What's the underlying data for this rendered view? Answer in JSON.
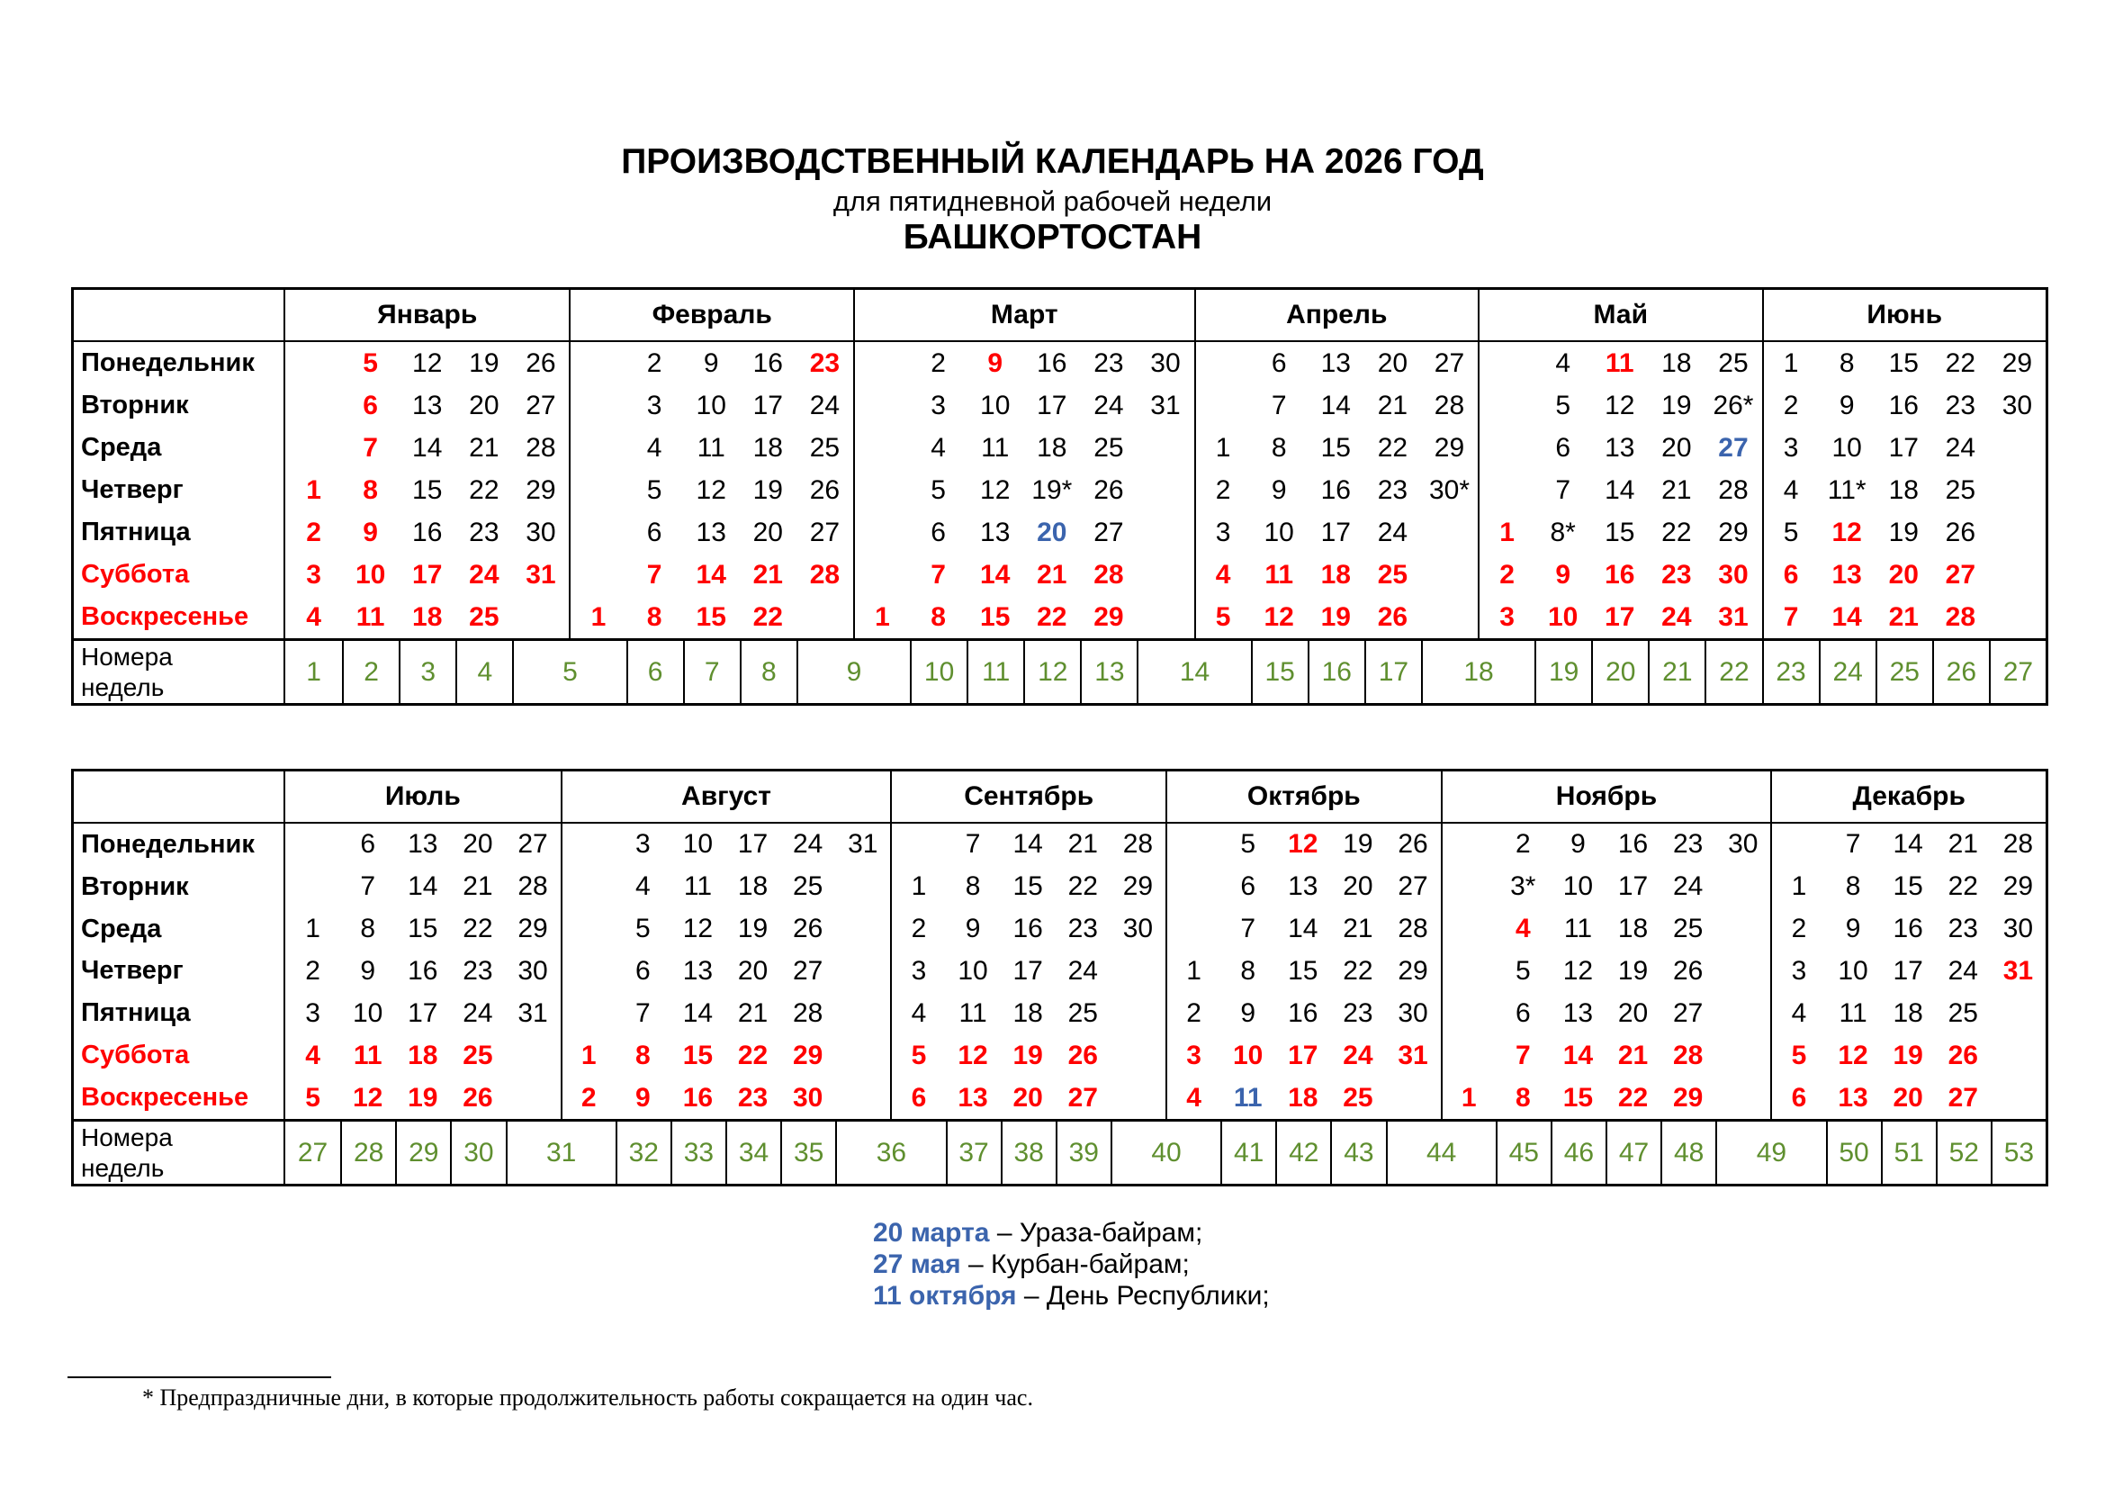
{
  "header": {
    "title": "ПРОИЗВОДСТВЕННЫЙ КАЛЕНДАРЬ НА 2026 ГОД",
    "subtitle": "для пятидневной рабочей недели",
    "region": "БАШКОРТОСТАН"
  },
  "weekdays": [
    "Понедельник",
    "Вторник",
    "Среда",
    "Четверг",
    "Пятница",
    "Суббота",
    "Воскресенье"
  ],
  "week_label": [
    "Номера",
    "недель"
  ],
  "colors": {
    "holiday": "#ff0000",
    "special": "#3b64ad",
    "week_numbers": "#5f8f2f"
  },
  "tables": [
    {
      "months": [
        {
          "name": "Январь",
          "cols": [
            [
              "",
              "",
              "",
              "1",
              "2",
              "3",
              "4"
            ],
            [
              "5",
              "6",
              "7",
              "8",
              "9",
              "10",
              "11"
            ],
            [
              "12",
              "13",
              "14",
              "15",
              "16",
              "17",
              "18"
            ],
            [
              "19",
              "20",
              "21",
              "22",
              "23",
              "24",
              "25"
            ],
            [
              "26",
              "27",
              "28",
              "29",
              "30",
              "31",
              ""
            ]
          ],
          "red": [
            "1",
            "2",
            "3",
            "4",
            "5",
            "6",
            "7",
            "8",
            "9"
          ],
          "blue": [],
          "weeks": [
            1,
            2,
            3,
            4,
            5
          ]
        },
        {
          "name": "Февраль",
          "cols": [
            [
              "",
              "",
              "",
              "",
              "",
              "",
              "1"
            ],
            [
              "2",
              "3",
              "4",
              "5",
              "6",
              "7",
              "8"
            ],
            [
              "9",
              "10",
              "11",
              "12",
              "13",
              "14",
              "15"
            ],
            [
              "16",
              "17",
              "18",
              "19",
              "20",
              "21",
              "22"
            ],
            [
              "23",
              "24",
              "25",
              "26",
              "27",
              "28",
              ""
            ]
          ],
          "red": [
            "23"
          ],
          "blue": [],
          "weeks": [
            5,
            6,
            7,
            8,
            9
          ]
        },
        {
          "name": "Март",
          "cols": [
            [
              "",
              "",
              "",
              "",
              "",
              "",
              "1"
            ],
            [
              "2",
              "3",
              "4",
              "5",
              "6",
              "7",
              "8"
            ],
            [
              "9",
              "10",
              "11",
              "12",
              "13",
              "14",
              "15"
            ],
            [
              "16",
              "17",
              "18",
              "19*",
              "20",
              "21",
              "22"
            ],
            [
              "23",
              "24",
              "25",
              "26",
              "27",
              "28",
              "29"
            ],
            [
              "30",
              "31",
              "",
              "",
              "",
              "",
              ""
            ]
          ],
          "red": [
            "9"
          ],
          "blue": [
            "20"
          ],
          "weeks": [
            9,
            10,
            11,
            12,
            13,
            14
          ]
        },
        {
          "name": "Апрель",
          "cols": [
            [
              "",
              "",
              "1",
              "2",
              "3",
              "4",
              "5"
            ],
            [
              "6",
              "7",
              "8",
              "9",
              "10",
              "11",
              "12"
            ],
            [
              "13",
              "14",
              "15",
              "16",
              "17",
              "18",
              "19"
            ],
            [
              "20",
              "21",
              "22",
              "23",
              "24",
              "25",
              "26"
            ],
            [
              "27",
              "28",
              "29",
              "30*",
              "",
              "",
              ""
            ]
          ],
          "red": [],
          "blue": [],
          "weeks": [
            14,
            15,
            16,
            17,
            18
          ]
        },
        {
          "name": "Май",
          "cols": [
            [
              "",
              "",
              "",
              "",
              "1",
              "2",
              "3"
            ],
            [
              "4",
              "5",
              "6",
              "7",
              "8*",
              "9",
              "10"
            ],
            [
              "11",
              "12",
              "13",
              "14",
              "15",
              "16",
              "17"
            ],
            [
              "18",
              "19",
              "20",
              "21",
              "22",
              "23",
              "24"
            ],
            [
              "25",
              "26*",
              "27",
              "28",
              "29",
              "30",
              "31"
            ]
          ],
          "red": [
            "1",
            "11"
          ],
          "blue": [
            "27"
          ],
          "weeks": [
            18,
            19,
            20,
            21,
            22
          ]
        },
        {
          "name": "Июнь",
          "cols": [
            [
              "1",
              "2",
              "3",
              "4",
              "5",
              "6",
              "7"
            ],
            [
              "8",
              "9",
              "10",
              "11*",
              "12",
              "13",
              "14"
            ],
            [
              "15",
              "16",
              "17",
              "18",
              "19",
              "20",
              "21"
            ],
            [
              "22",
              "23",
              "24",
              "25",
              "26",
              "27",
              "28"
            ],
            [
              "29",
              "30",
              "",
              "",
              "",
              "",
              ""
            ]
          ],
          "red": [
            "12"
          ],
          "blue": [],
          "weeks": [
            23,
            24,
            25,
            26,
            27
          ]
        }
      ]
    },
    {
      "months": [
        {
          "name": "Июль",
          "cols": [
            [
              "",
              "",
              "1",
              "2",
              "3",
              "4",
              "5"
            ],
            [
              "6",
              "7",
              "8",
              "9",
              "10",
              "11",
              "12"
            ],
            [
              "13",
              "14",
              "15",
              "16",
              "17",
              "18",
              "19"
            ],
            [
              "20",
              "21",
              "22",
              "23",
              "24",
              "25",
              "26"
            ],
            [
              "27",
              "28",
              "29",
              "30",
              "31",
              "",
              ""
            ]
          ],
          "red": [],
          "blue": [],
          "weeks": [
            27,
            28,
            29,
            30,
            31
          ]
        },
        {
          "name": "Август",
          "cols": [
            [
              "",
              "",
              "",
              "",
              "",
              "1",
              "2"
            ],
            [
              "3",
              "4",
              "5",
              "6",
              "7",
              "8",
              "9"
            ],
            [
              "10",
              "11",
              "12",
              "13",
              "14",
              "15",
              "16"
            ],
            [
              "17",
              "18",
              "19",
              "20",
              "21",
              "22",
              "23"
            ],
            [
              "24",
              "25",
              "26",
              "27",
              "28",
              "29",
              "30"
            ],
            [
              "31",
              "",
              "",
              "",
              "",
              "",
              ""
            ]
          ],
          "red": [],
          "blue": [],
          "weeks": [
            31,
            32,
            33,
            34,
            35,
            36
          ]
        },
        {
          "name": "Сентябрь",
          "cols": [
            [
              "",
              "1",
              "2",
              "3",
              "4",
              "5",
              "6"
            ],
            [
              "7",
              "8",
              "9",
              "10",
              "11",
              "12",
              "13"
            ],
            [
              "14",
              "15",
              "16",
              "17",
              "18",
              "19",
              "20"
            ],
            [
              "21",
              "22",
              "23",
              "24",
              "25",
              "26",
              "27"
            ],
            [
              "28",
              "29",
              "30",
              "",
              "",
              "",
              ""
            ]
          ],
          "red": [],
          "blue": [],
          "weeks": [
            36,
            37,
            38,
            39,
            40
          ]
        },
        {
          "name": "Октябрь",
          "cols": [
            [
              "",
              "",
              "",
              "1",
              "2",
              "3",
              "4"
            ],
            [
              "5",
              "6",
              "7",
              "8",
              "9",
              "10",
              "11"
            ],
            [
              "12",
              "13",
              "14",
              "15",
              "16",
              "17",
              "18"
            ],
            [
              "19",
              "20",
              "21",
              "22",
              "23",
              "24",
              "25"
            ],
            [
              "26",
              "27",
              "28",
              "29",
              "30",
              "31",
              ""
            ]
          ],
          "red": [
            "12"
          ],
          "blue": [
            "11"
          ],
          "weeks": [
            40,
            41,
            42,
            43,
            44
          ]
        },
        {
          "name": "Ноябрь",
          "cols": [
            [
              "",
              "",
              "",
              "",
              "",
              "",
              "1"
            ],
            [
              "2",
              "3*",
              "4",
              "5",
              "6",
              "7",
              "8"
            ],
            [
              "9",
              "10",
              "11",
              "12",
              "13",
              "14",
              "15"
            ],
            [
              "16",
              "17",
              "18",
              "19",
              "20",
              "21",
              "22"
            ],
            [
              "23",
              "24",
              "25",
              "26",
              "27",
              "28",
              "29"
            ],
            [
              "30",
              "",
              "",
              "",
              "",
              "",
              ""
            ]
          ],
          "red": [
            "4"
          ],
          "blue": [],
          "weeks": [
            44,
            45,
            46,
            47,
            48,
            49
          ]
        },
        {
          "name": "Декабрь",
          "cols": [
            [
              "",
              "1",
              "2",
              "3",
              "4",
              "5",
              "6"
            ],
            [
              "7",
              "8",
              "9",
              "10",
              "11",
              "12",
              "13"
            ],
            [
              "14",
              "15",
              "16",
              "17",
              "18",
              "19",
              "20"
            ],
            [
              "21",
              "22",
              "23",
              "24",
              "25",
              "26",
              "27"
            ],
            [
              "28",
              "29",
              "30",
              "31",
              "",
              "",
              ""
            ]
          ],
          "red": [
            "31"
          ],
          "blue": [],
          "weeks": [
            49,
            50,
            51,
            52,
            53
          ]
        }
      ]
    }
  ],
  "notes": [
    {
      "date": "20 марта",
      "text": " – Ураза-байрам;"
    },
    {
      "date": "27 мая",
      "text": " – Курбан-байрам;"
    },
    {
      "date": "11 октября",
      "text": " – День Республики;"
    }
  ],
  "footnote": "* Предпраздничные дни, в которые продолжительность работы сокращается на один час."
}
